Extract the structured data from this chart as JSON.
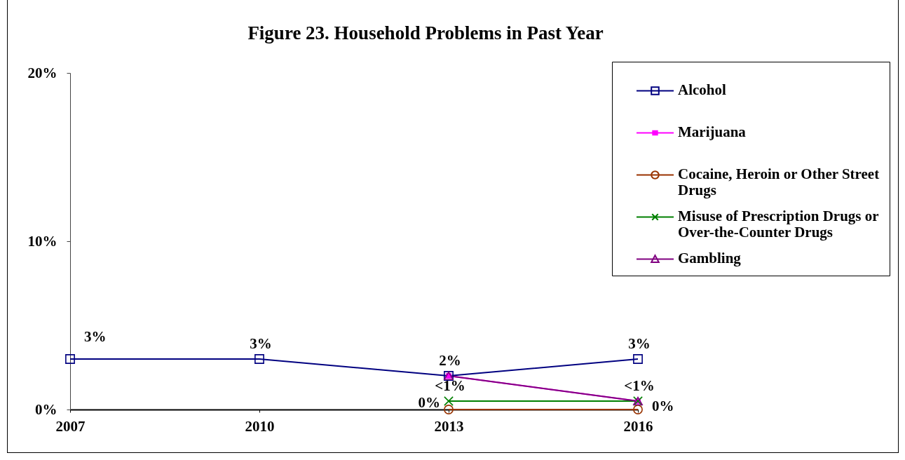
{
  "chart_data": {
    "type": "line",
    "title": "Figure 23. Household Problems in Past Year",
    "categories": [
      "2007",
      "2010",
      "2013",
      "2016"
    ],
    "series": [
      {
        "name": "Alcohol",
        "color": "#000080",
        "marker": "square",
        "values": [
          3,
          3,
          2,
          3
        ],
        "value_labels": [
          "3%",
          "3%",
          "2%",
          "3%"
        ]
      },
      {
        "name": "Marijuana",
        "color": "#ff00ff",
        "marker": "square",
        "values": [
          null,
          null,
          2,
          0.5
        ]
      },
      {
        "name": "Cocaine, Heroin or Other Street Drugs",
        "color": "#993300",
        "marker": "circle",
        "values": [
          null,
          null,
          0,
          0
        ],
        "value_labels": [
          null,
          null,
          "0%",
          "0%"
        ]
      },
      {
        "name": "Misuse of Prescription Drugs or Over-the-Counter Drugs",
        "color": "#008000",
        "marker": "cross",
        "values": [
          null,
          null,
          0.5,
          0.5
        ],
        "value_labels": [
          null,
          null,
          "<1%",
          "<1%"
        ]
      },
      {
        "name": "Gambling",
        "color": "#800080",
        "marker": "triangle",
        "values": [
          null,
          null,
          2,
          0.5
        ]
      }
    ],
    "ylim": [
      0,
      20
    ],
    "yticks": [
      {
        "value": 0,
        "label": "0%"
      },
      {
        "value": 10,
        "label": "10%"
      },
      {
        "value": 20,
        "label": "20%"
      }
    ],
    "legend": "top right",
    "line_style": "solid"
  }
}
